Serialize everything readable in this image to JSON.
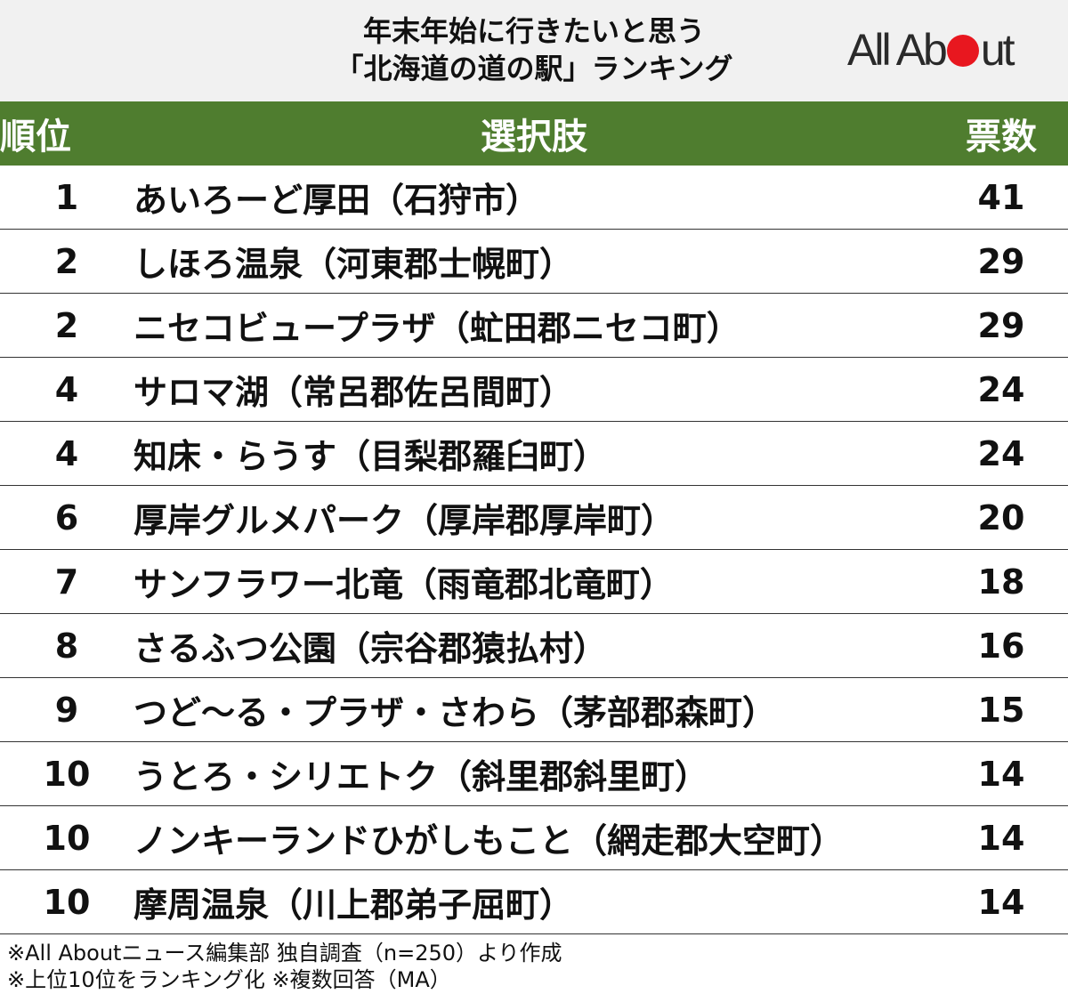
{
  "header": {
    "title_line1": "年末年始に行きたいと思う",
    "title_line2": "「北海道の道の駅」ランキング",
    "logo_before": "All Ab",
    "logo_after": "ut",
    "logo_dot_color": "#e8171f",
    "bg_color": "#f1f1f1"
  },
  "table_header_color": "#4f7d2f",
  "chart_data": {
    "type": "table",
    "columns": [
      "順位",
      "選択肢",
      "票数"
    ],
    "rows": [
      {
        "rank": "1",
        "name": "あいろーど厚田（石狩市）",
        "votes": 41
      },
      {
        "rank": "2",
        "name": "しほろ温泉（河東郡士幌町）",
        "votes": 29
      },
      {
        "rank": "2",
        "name": "ニセコビュープラザ（虻田郡ニセコ町）",
        "votes": 29
      },
      {
        "rank": "4",
        "name": "サロマ湖（常呂郡佐呂間町）",
        "votes": 24
      },
      {
        "rank": "4",
        "name": "知床・らうす（目梨郡羅臼町）",
        "votes": 24
      },
      {
        "rank": "6",
        "name": "厚岸グルメパーク（厚岸郡厚岸町）",
        "votes": 20
      },
      {
        "rank": "7",
        "name": "サンフラワー北竜（雨竜郡北竜町）",
        "votes": 18
      },
      {
        "rank": "8",
        "name": "さるふつ公園（宗谷郡猿払村）",
        "votes": 16
      },
      {
        "rank": "9",
        "name": "つど～る・プラザ・さわら（茅部郡森町）",
        "votes": 15
      },
      {
        "rank": "10",
        "name": "うとろ・シリエトク（斜里郡斜里町）",
        "votes": 14
      },
      {
        "rank": "10",
        "name": "ノンキーランドひがしもこと（網走郡大空町）",
        "votes": 14
      },
      {
        "rank": "10",
        "name": "摩周温泉（川上郡弟子屈町）",
        "votes": 14
      }
    ]
  },
  "notes": [
    "※All Aboutニュース編集部 独自調査（n=250）より作成",
    "※上位10位をランキング化 ※複数回答（MA）"
  ]
}
